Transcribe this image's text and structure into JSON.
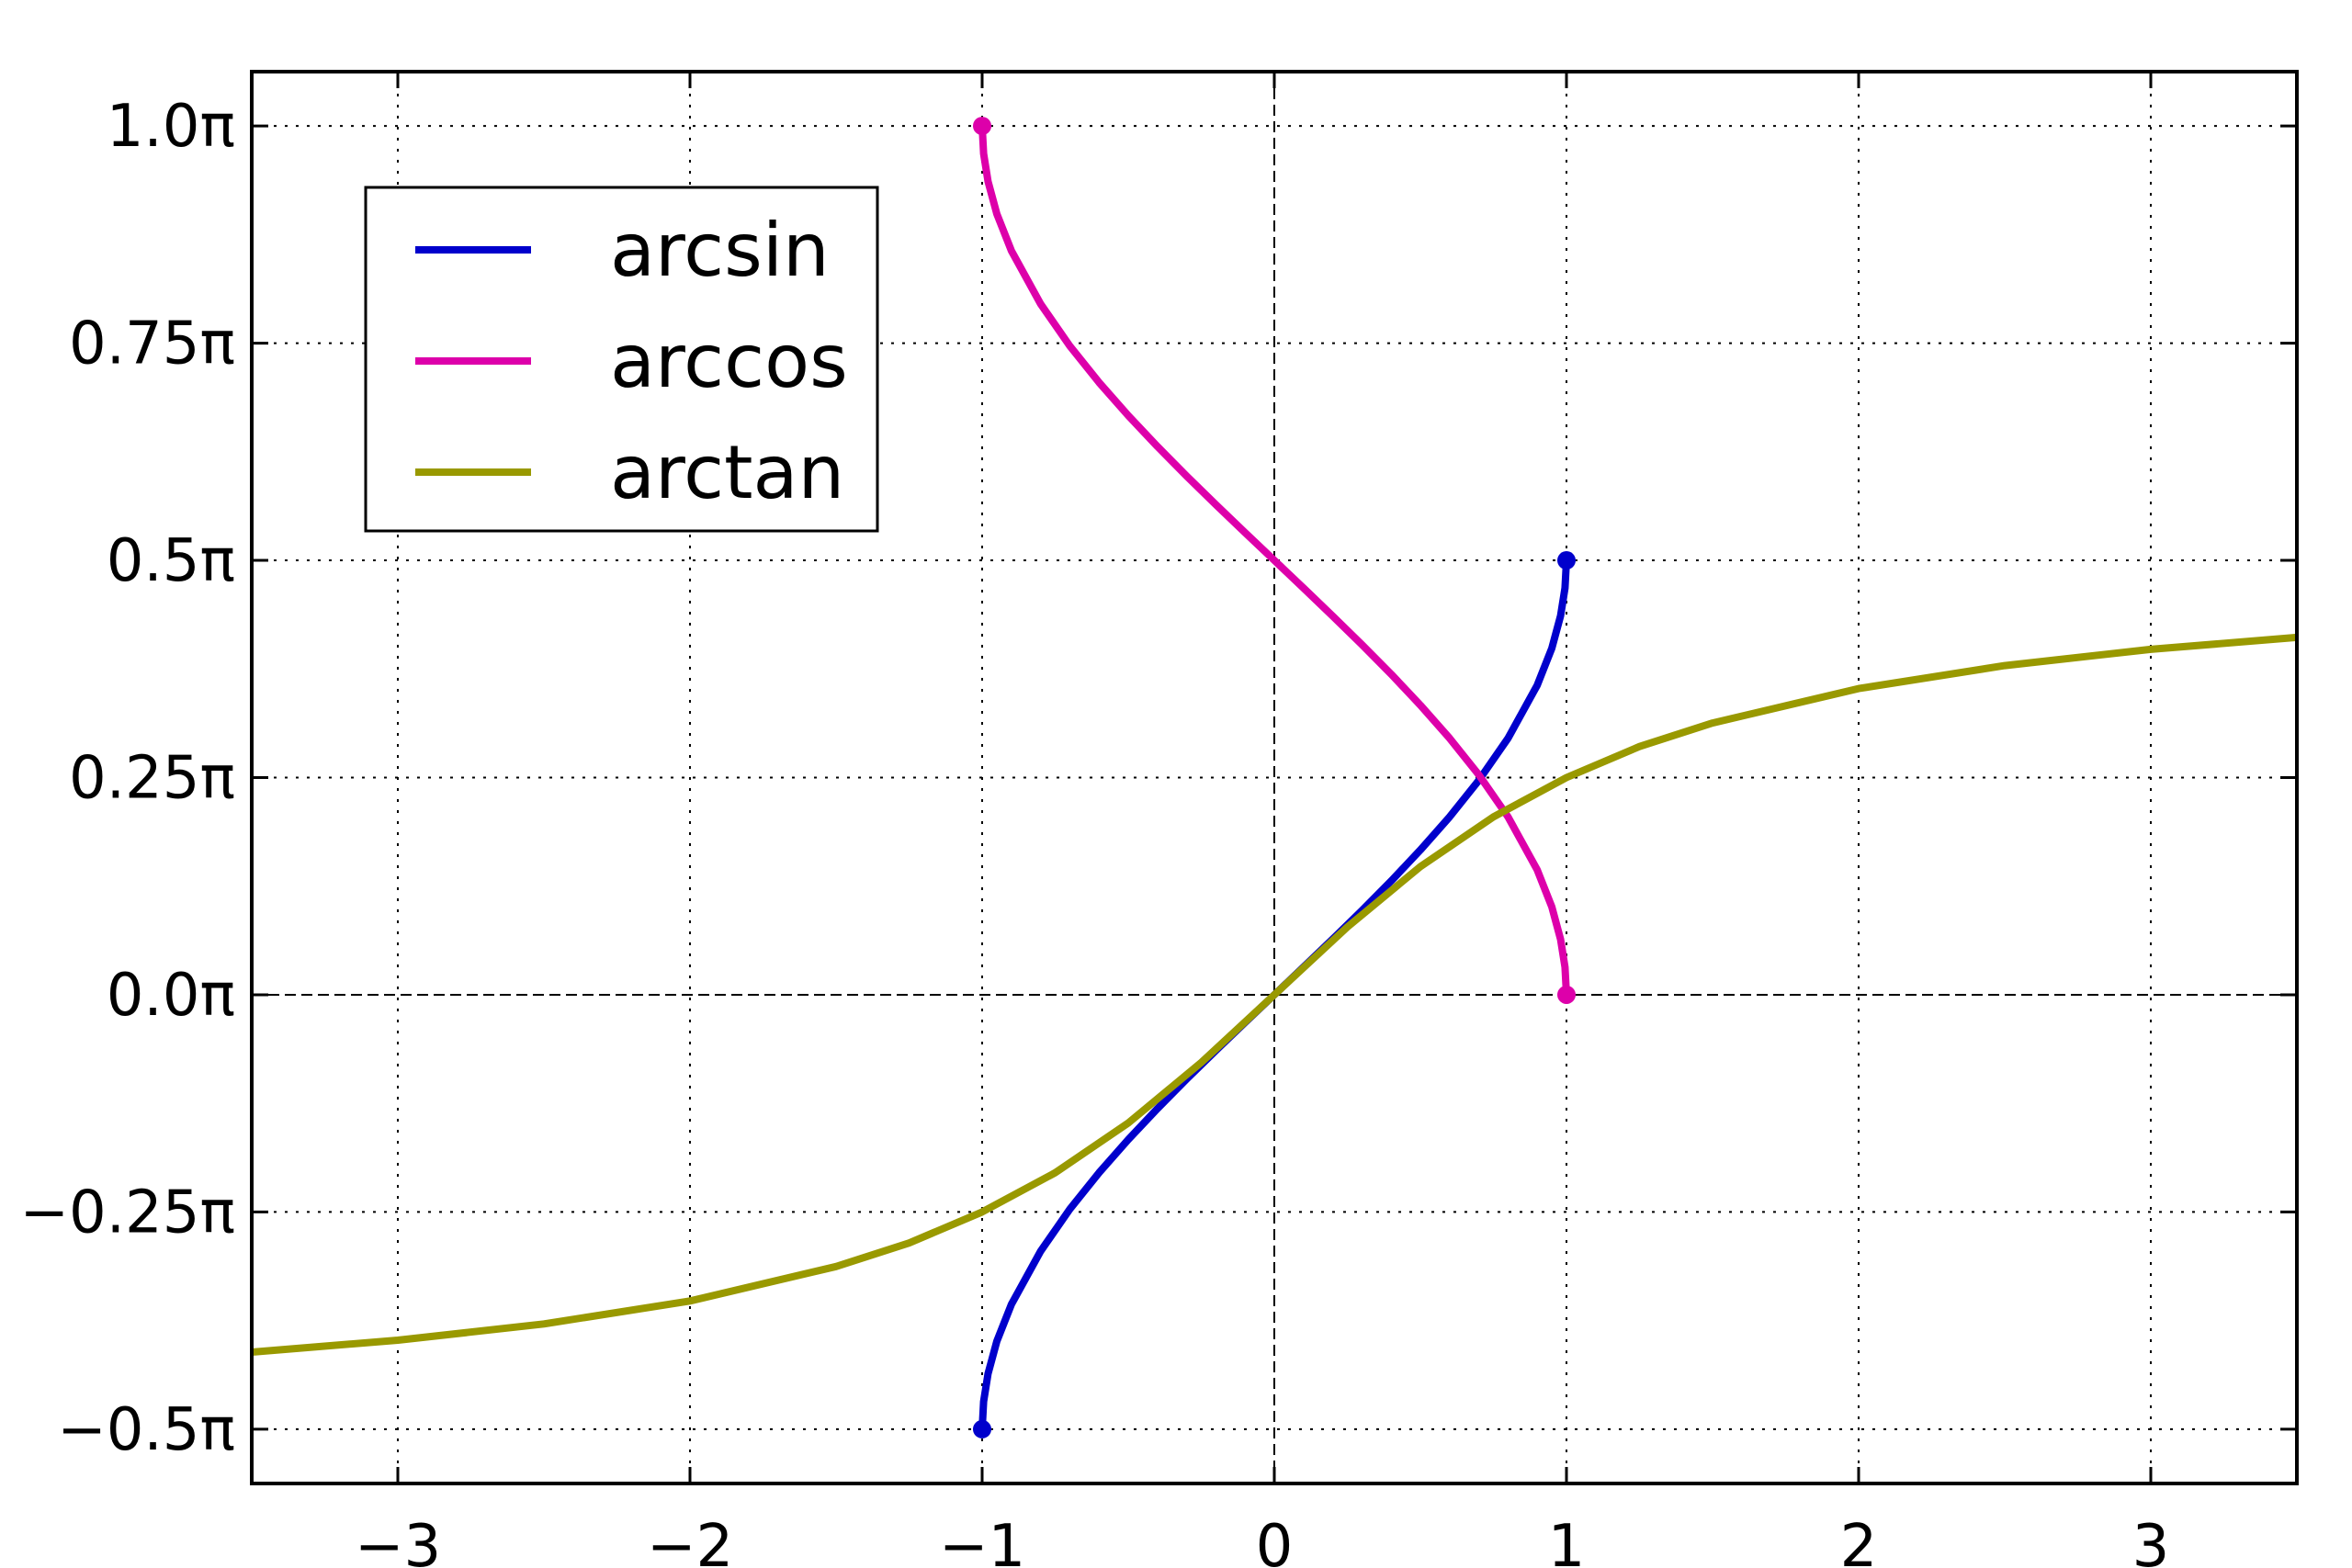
{
  "chart_data": {
    "type": "line",
    "title": "",
    "xlabel": "",
    "ylabel": "",
    "xlim": [
      -3.5,
      3.5
    ],
    "ylim": [
      -0.5625,
      1.0625
    ],
    "y_unit": "π",
    "grid": true,
    "grid_style": "dotted",
    "zero_lines": "dashed",
    "ticks_direction": "in",
    "legend_position": "upper-left",
    "xticks": [
      {
        "value": -3,
        "label": "−3"
      },
      {
        "value": -2,
        "label": "−2"
      },
      {
        "value": -1,
        "label": "−1"
      },
      {
        "value": 0,
        "label": "0"
      },
      {
        "value": 1,
        "label": "1"
      },
      {
        "value": 2,
        "label": "2"
      },
      {
        "value": 3,
        "label": "3"
      }
    ],
    "yticks": [
      {
        "value": -0.5,
        "label": "−0.5π"
      },
      {
        "value": -0.25,
        "label": "−0.25π"
      },
      {
        "value": 0,
        "label": "0.0π"
      },
      {
        "value": 0.25,
        "label": "0.25π"
      },
      {
        "value": 0.5,
        "label": "0.5π"
      },
      {
        "value": 0.75,
        "label": "0.75π"
      },
      {
        "value": 1.0,
        "label": "1.0π"
      }
    ],
    "series": [
      {
        "name": "arcsin",
        "color": "#0000cc",
        "x": [
          -1,
          -0.995,
          -0.98,
          -0.95,
          -0.9,
          -0.8,
          -0.7,
          -0.6,
          -0.5,
          -0.4,
          -0.3,
          -0.2,
          -0.1,
          0,
          0.1,
          0.2,
          0.3,
          0.4,
          0.5,
          0.6,
          0.7,
          0.8,
          0.9,
          0.95,
          0.98,
          0.995,
          1
        ],
        "y": [
          -0.5,
          -0.4682,
          -0.4363,
          -0.399,
          -0.3564,
          -0.2952,
          -0.2468,
          -0.2048,
          -0.1667,
          -0.131,
          -0.097,
          -0.0641,
          -0.0319,
          0,
          0.0319,
          0.0641,
          0.097,
          0.131,
          0.1667,
          0.2048,
          0.2468,
          0.2952,
          0.3564,
          0.399,
          0.4363,
          0.4682,
          0.5
        ],
        "endpoint_markers": [
          [
            -1,
            -0.5
          ],
          [
            1,
            0.5
          ]
        ]
      },
      {
        "name": "arccos",
        "color": "#dd00aa",
        "x": [
          -1,
          -0.995,
          -0.98,
          -0.95,
          -0.9,
          -0.8,
          -0.7,
          -0.6,
          -0.5,
          -0.4,
          -0.3,
          -0.2,
          -0.1,
          0,
          0.1,
          0.2,
          0.3,
          0.4,
          0.5,
          0.6,
          0.7,
          0.8,
          0.9,
          0.95,
          0.98,
          0.995,
          1
        ],
        "y": [
          1.0,
          0.9682,
          0.9363,
          0.899,
          0.8564,
          0.7952,
          0.7468,
          0.7048,
          0.6667,
          0.631,
          0.597,
          0.5641,
          0.5319,
          0.5,
          0.4681,
          0.4359,
          0.403,
          0.369,
          0.3333,
          0.2952,
          0.2532,
          0.2048,
          0.1436,
          0.101,
          0.0637,
          0.0318,
          0
        ],
        "endpoint_markers": [
          [
            -1,
            1.0
          ],
          [
            1,
            0
          ]
        ]
      },
      {
        "name": "arctan",
        "color": "#999900",
        "x": [
          -3.5,
          -3.0,
          -2.5,
          -2.0,
          -1.5,
          -1.25,
          -1.0,
          -0.75,
          -0.5,
          -0.25,
          0,
          0.25,
          0.5,
          0.75,
          1.0,
          1.25,
          1.5,
          2.0,
          2.5,
          3.0,
          3.5
        ],
        "y": [
          -0.4113,
          -0.3976,
          -0.3789,
          -0.3524,
          -0.3128,
          -0.2857,
          -0.25,
          -0.2048,
          -0.1476,
          -0.078,
          0,
          0.078,
          0.1476,
          0.2048,
          0.25,
          0.2857,
          0.3128,
          0.3524,
          0.3789,
          0.3976,
          0.4113
        ]
      }
    ]
  }
}
